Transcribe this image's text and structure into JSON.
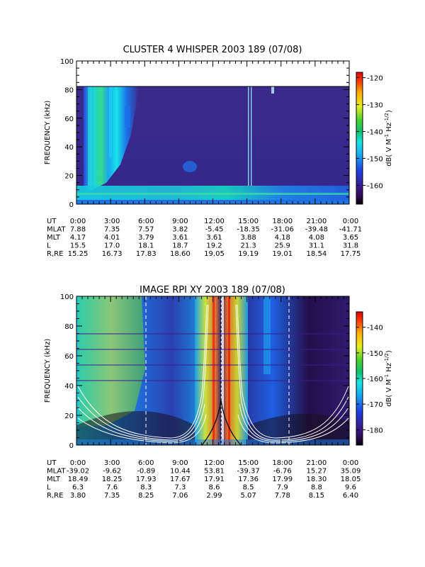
{
  "chart_data": [
    {
      "type": "heatmap",
      "title": "CLUSTER 4 WHISPER 2003 189 (07/08)",
      "ylabel": "FREQUENCY (kHz)",
      "ylim": [
        0,
        100
      ],
      "yticks": [
        "0",
        "20",
        "40",
        "60",
        "80",
        "100"
      ],
      "colorbar": {
        "label": "dB( V M",
        "label_sup1": "-1",
        "label_mid": " Hz",
        "label_sup2": "-1/2",
        "label_end": ")",
        "range": [
          -167,
          -118
        ],
        "ticks": [
          "-120",
          "-130",
          "-140",
          "-150",
          "-160"
        ],
        "tick_values": [
          -120,
          -130,
          -140,
          -150,
          -160
        ]
      },
      "data_upper_limit_khz": 80,
      "ephemeris": {
        "rows": [
          {
            "label": "UT",
            "values": [
              "0:00",
              "3:00",
              "6:00",
              "9:00",
              "12:00",
              "15:00",
              "18:00",
              "21:00",
              "0:00"
            ]
          },
          {
            "label": "MLAT",
            "values": [
              "7.88",
              "7.35",
              "7.57",
              "3.82",
              "-5.45",
              "-18.35",
              "-31.06",
              "-39.48",
              "-41.71"
            ]
          },
          {
            "label": "MLT",
            "values": [
              "4.17",
              "4.01",
              "3.79",
              "3.61",
              "3.61",
              "3.88",
              "4.18",
              "4.08",
              "3.65"
            ]
          },
          {
            "label": "L",
            "values": [
              "15.5",
              "17.0",
              "18.1",
              "18.7",
              "19.2",
              "21.3",
              "25.9",
              "31.1",
              "31.8"
            ]
          },
          {
            "label": "R,RE",
            "values": [
              "15.25",
              "16.73",
              "17.83",
              "18.60",
              "19.05",
              "19.19",
              "19.01",
              "18.54",
              "17.75"
            ]
          }
        ]
      }
    },
    {
      "type": "heatmap",
      "title": "IMAGE RPI XY 2003 189 (07/08)",
      "ylabel": "FREQUENCY (kHz)",
      "ylim": [
        0,
        100
      ],
      "yticks": [
        "0",
        "20",
        "40",
        "60",
        "80",
        "100"
      ],
      "colorbar": {
        "label": "dB( V M",
        "label_sup1": "-1",
        "label_mid": " Hz",
        "label_sup2": "-1/2",
        "label_end": ")",
        "range": [
          -186,
          -134
        ],
        "ticks": [
          "-140",
          "-150",
          "-160",
          "-170",
          "-180"
        ],
        "tick_values": [
          -140,
          -150,
          -160,
          -170,
          -180
        ]
      },
      "ephemeris": {
        "rows": [
          {
            "label": "UT",
            "values": [
              "0:00",
              "3:00",
              "6:00",
              "9:00",
              "12:00",
              "15:00",
              "18:00",
              "21:00",
              "0:00"
            ]
          },
          {
            "label": "MLAT",
            "values": [
              "-39.02",
              "-9.62",
              "-0.89",
              "10.44",
              "53.81",
              "-39.37",
              "-6.76",
              "15.27",
              "35.09"
            ]
          },
          {
            "label": "MLT",
            "values": [
              "18.49",
              "18.25",
              "17.93",
              "17.67",
              "17.91",
              "17.36",
              "17.99",
              "18.30",
              "18.05"
            ]
          },
          {
            "label": "L",
            "values": [
              "6.3",
              "7.6",
              "8.3",
              "7.3",
              "8.6",
              "8.5",
              "7.9",
              "8.8",
              "9.6"
            ]
          },
          {
            "label": "R,RE",
            "values": [
              "3.80",
              "7.35",
              "8.25",
              "7.06",
              "2.99",
              "5.07",
              "7.78",
              "8.15",
              "6.40"
            ]
          }
        ]
      }
    }
  ]
}
